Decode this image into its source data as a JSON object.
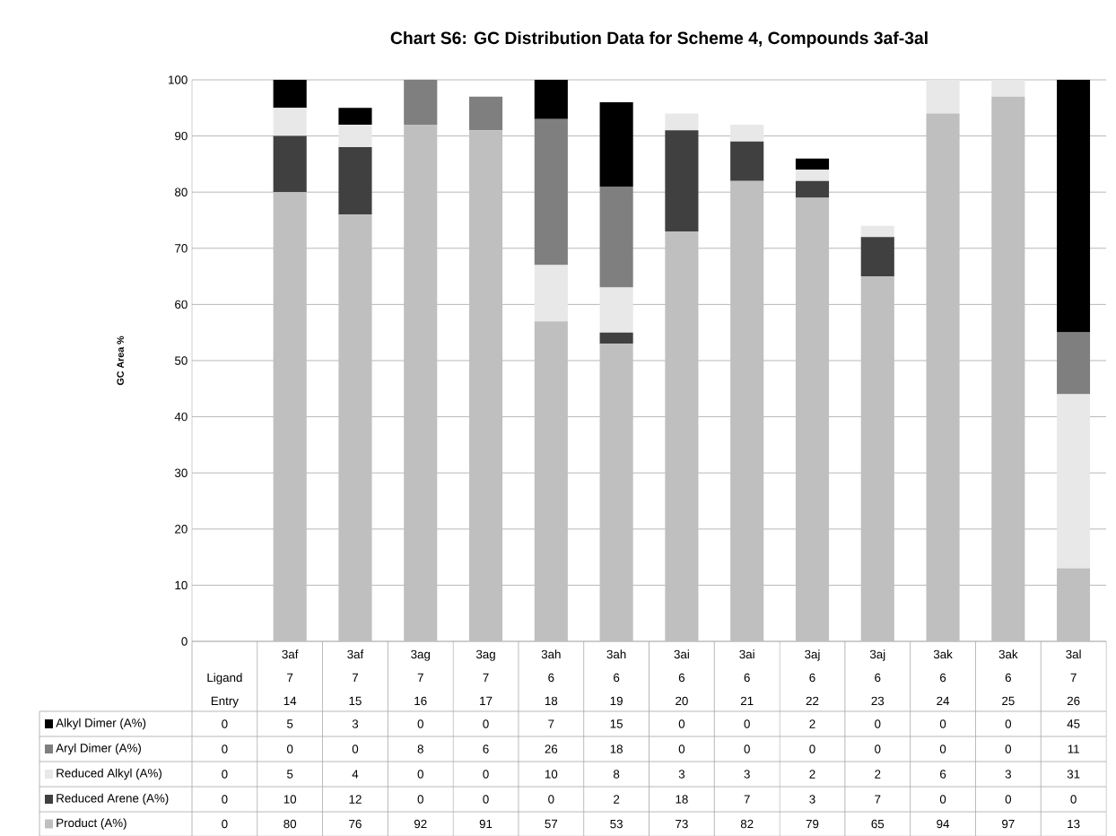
{
  "chart_data": {
    "type": "bar",
    "title": "Chart S6: GC Distribution Data for Scheme 4, Compounds 3af-3al",
    "ylabel": "GC Area %",
    "categories": [
      null,
      "3af 7 14",
      "3af 7 15",
      "3ag 7 16",
      "3ag 7 17",
      "3ah 6 18",
      "3ah 6 19",
      "3ai 6 20",
      "3ai 6 21",
      "3aj 6 22",
      "3aj 6 23",
      "3ak 6 24",
      "3ak 6 25",
      "3al 7 26"
    ],
    "annotations": [
      "Ligand",
      "Entry"
    ],
    "series": [
      {
        "name": "Product (A%)",
        "color": "#bfbfbf",
        "values": [
          0,
          80,
          76,
          92,
          91,
          57,
          53,
          73,
          82,
          79,
          65,
          94,
          97,
          13
        ]
      },
      {
        "name": "Reduced Arene (A%)",
        "color": "#404040",
        "values": [
          0,
          10,
          12,
          0,
          0,
          0,
          2,
          18,
          7,
          3,
          7,
          0,
          0,
          0
        ]
      },
      {
        "name": "Reduced Alkyl (A%)",
        "color": "#e8e8e8",
        "values": [
          0,
          5,
          4,
          0,
          0,
          10,
          8,
          3,
          3,
          2,
          2,
          6,
          3,
          31
        ]
      },
      {
        "name": "Aryl Dimer (A%)",
        "color": "#7f7f7f",
        "values": [
          0,
          0,
          0,
          8,
          6,
          26,
          18,
          0,
          0,
          0,
          0,
          0,
          0,
          11
        ]
      },
      {
        "name": "Alkyl Dimer (A%)",
        "color": "#000000",
        "values": [
          0,
          5,
          3,
          0,
          0,
          7,
          15,
          0,
          0,
          2,
          0,
          0,
          0,
          45
        ]
      }
    ],
    "stacked": true,
    "ylim": [
      0,
      100
    ],
    "yticks": [
      0,
      10,
      20,
      30,
      40,
      50,
      60,
      70,
      80,
      90,
      100
    ],
    "grid": "y",
    "legend": "bottom",
    "data_labels": true
  }
}
